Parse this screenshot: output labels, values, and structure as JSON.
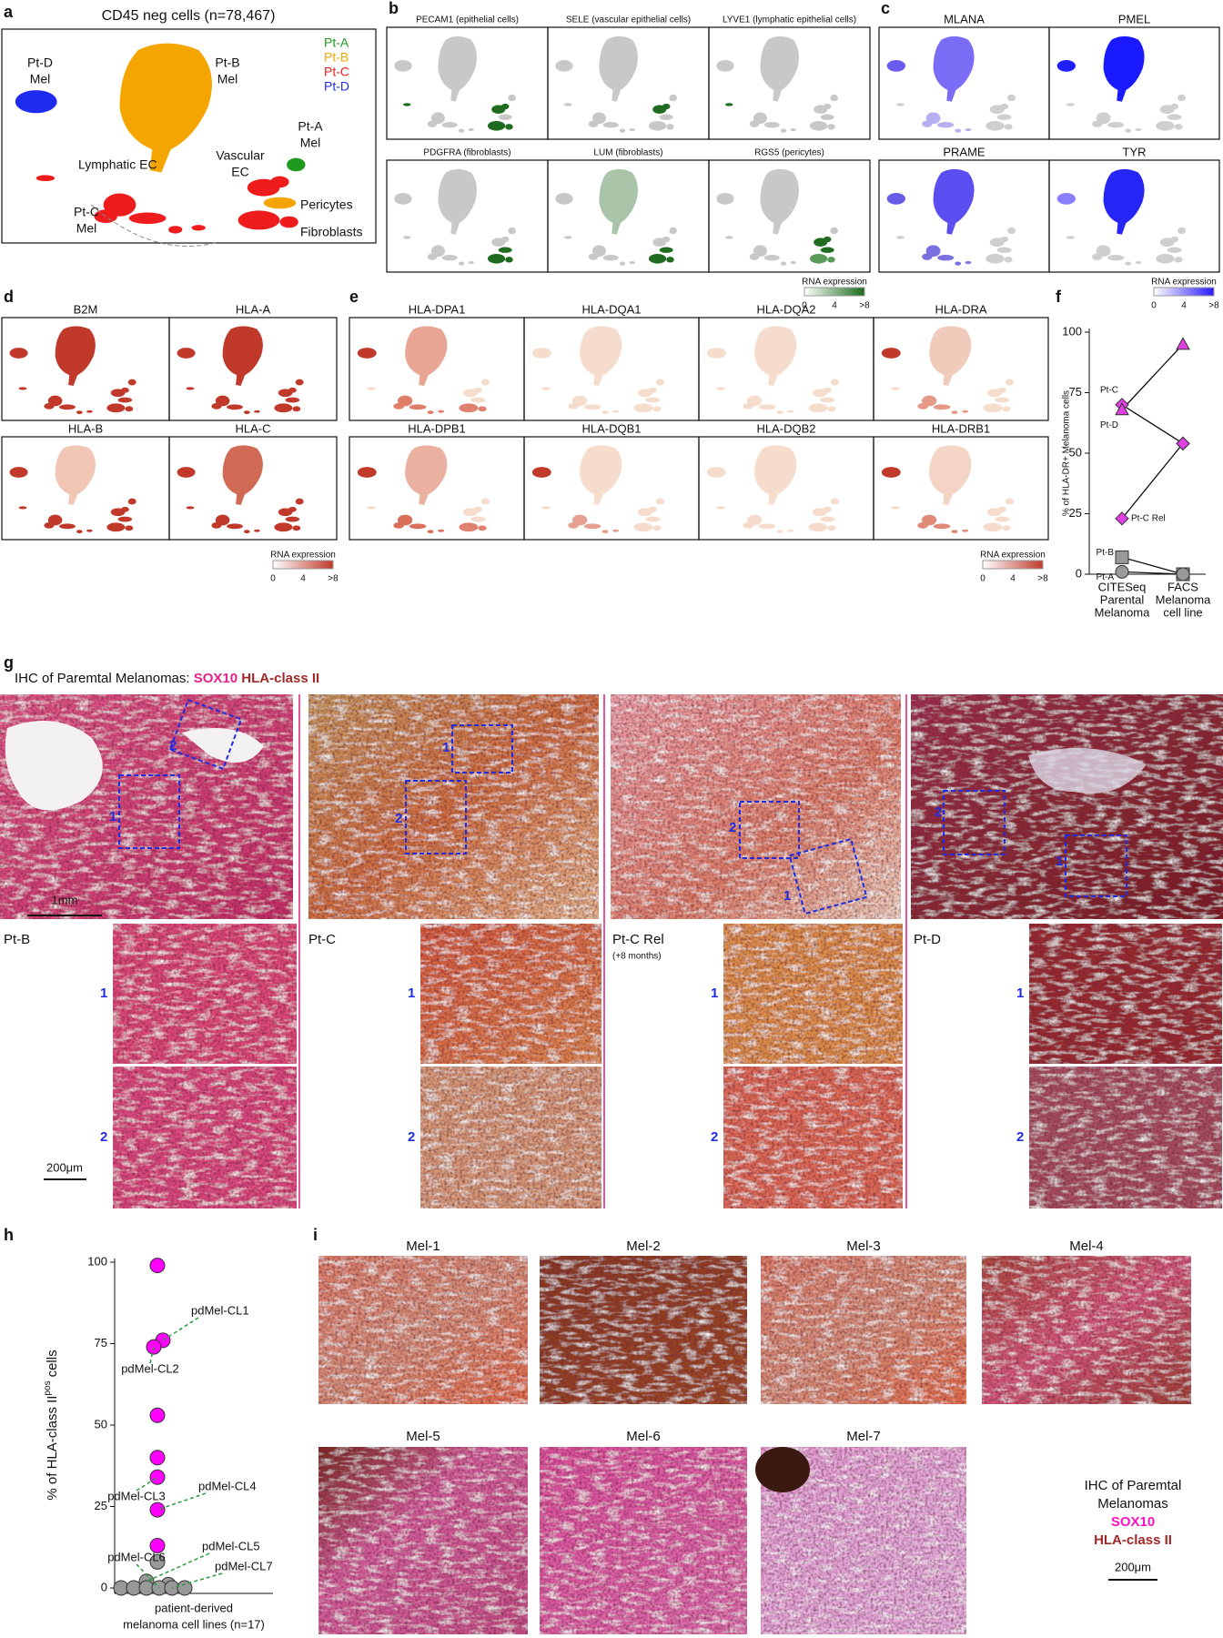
{
  "a": {
    "label": "a",
    "title": "CD45 neg cells (n=78,467)",
    "legend": [
      {
        "name": "Pt-A",
        "color": "#1f9a1f"
      },
      {
        "name": "Pt-B",
        "color": "#f5a500"
      },
      {
        "name": "Pt-C",
        "color": "#ee1c1c"
      },
      {
        "name": "Pt-D",
        "color": "#1f2cf0"
      }
    ],
    "clusters": [
      [
        "Pt-D",
        "Mel"
      ],
      [
        "Pt-B",
        "Mel"
      ],
      [
        "Lymphatic EC"
      ],
      [
        "Vascular",
        "EC"
      ],
      [
        "Pt-A",
        "Mel"
      ],
      [
        "Pericytes"
      ],
      [
        "Pt-C",
        "Mel"
      ],
      [
        "Fibroblasts"
      ]
    ]
  },
  "b": {
    "label": "b",
    "genes": [
      "PECAM1 (epithelial cells)",
      "SELE (vascular epithelial cells)",
      "LYVE1 (lymphatic epithelial cells)",
      "PDGFRA (fibroblasts)",
      "LUM (fibroblasts)",
      "RGS5 (pericytes)"
    ],
    "colorbar": {
      "title": "RNA expression",
      "ticks": [
        "0",
        "4",
        ">8"
      ]
    }
  },
  "c": {
    "label": "c",
    "genes": [
      "MLANA",
      "PMEL",
      "PRAME",
      "TYR"
    ],
    "colorbar": {
      "title": "RNA expression",
      "ticks": [
        "0",
        "4",
        ">8"
      ]
    }
  },
  "d": {
    "label": "d",
    "genes": [
      "B2M",
      "HLA-A",
      "HLA-B",
      "HLA-C"
    ],
    "colorbar": {
      "title": "RNA expression",
      "ticks": [
        "0",
        "4",
        ">8"
      ]
    }
  },
  "e": {
    "label": "e",
    "genes": [
      "HLA-DPA1",
      "HLA-DQA1",
      "HLA-DQA2",
      "HLA-DRA",
      "HLA-DPB1",
      "HLA-DQB1",
      "HLA-DQB2",
      "HLA-DRB1"
    ],
    "colorbar": {
      "title": "RNA expression",
      "ticks": [
        "0",
        "4",
        ">8"
      ]
    }
  },
  "f": {
    "label": "f",
    "chart_data": {
      "type": "line",
      "ylabel": "% of HLA-DR+ Melanoma cells",
      "categories": [
        [
          "CITESeq",
          "Parental",
          "Melanoma"
        ],
        [
          "FACS",
          "Melanoma",
          "cell line"
        ]
      ],
      "series": [
        {
          "name": "Pt-C",
          "color": "#e040e0",
          "marker": "diamond",
          "values": [
            70,
            54
          ]
        },
        {
          "name": "Pt-D",
          "color": "#e040e0",
          "marker": "triangle",
          "values": [
            68,
            95
          ]
        },
        {
          "name": "Pt-C Rel",
          "color": "#e040e0",
          "marker": "diamond",
          "values": [
            23,
            54
          ]
        },
        {
          "name": "Pt-B",
          "color": "#999999",
          "marker": "square",
          "values": [
            7,
            0
          ]
        },
        {
          "name": "Pt-A",
          "color": "#999999",
          "marker": "circle",
          "values": [
            1,
            0
          ]
        }
      ],
      "ylim": [
        0,
        100
      ],
      "yticks": [
        0,
        25,
        50,
        75,
        100
      ]
    }
  },
  "g": {
    "label": "g",
    "title": "IHC of Paremtal Melanomas:",
    "stain_1": "SOX10",
    "stain_2": "HLA-class II",
    "scale_overview": "1mm",
    "scale_zoom": "200μm",
    "samples": [
      {
        "name": "Pt-B"
      },
      {
        "name": "Pt-C"
      },
      {
        "name": "Pt-C Rel",
        "note": "(+8 months)"
      },
      {
        "name": "Pt-D"
      }
    ],
    "regions": [
      "1",
      "2"
    ]
  },
  "h": {
    "label": "h",
    "chart_data": {
      "type": "scatter",
      "ylabel": "% of HLA-class II",
      "ylabel_sup": "pos",
      "ylabel_end": "cells",
      "xlabel": [
        "patient-derived",
        "melanoma cell lines (n=17)"
      ],
      "series": [
        {
          "color": "#ff00ff",
          "values": [
            99,
            76,
            74,
            53,
            40,
            34,
            24,
            13
          ]
        },
        {
          "color": "#999999",
          "values": [
            8,
            2,
            1,
            0,
            0,
            0,
            0,
            0,
            0
          ]
        }
      ],
      "annotations": [
        "pdMel-CL1",
        "pdMel-CL2",
        "pdMel-CL3",
        "pdMel-CL4",
        "pdMel-CL5",
        "pdMel-CL6",
        "pdMel-CL7"
      ],
      "ylim": [
        0,
        100
      ],
      "yticks": [
        0,
        25,
        50,
        75,
        100
      ]
    }
  },
  "i": {
    "label": "i",
    "samples": [
      "Mel-1",
      "Mel-2",
      "Mel-3",
      "Mel-4",
      "Mel-5",
      "Mel-6",
      "Mel-7"
    ],
    "caption": [
      "IHC of Paremtal",
      "Melanomas"
    ],
    "stain_1": "SOX10",
    "stain_2": "HLA-class II",
    "scale": "200μm"
  }
}
